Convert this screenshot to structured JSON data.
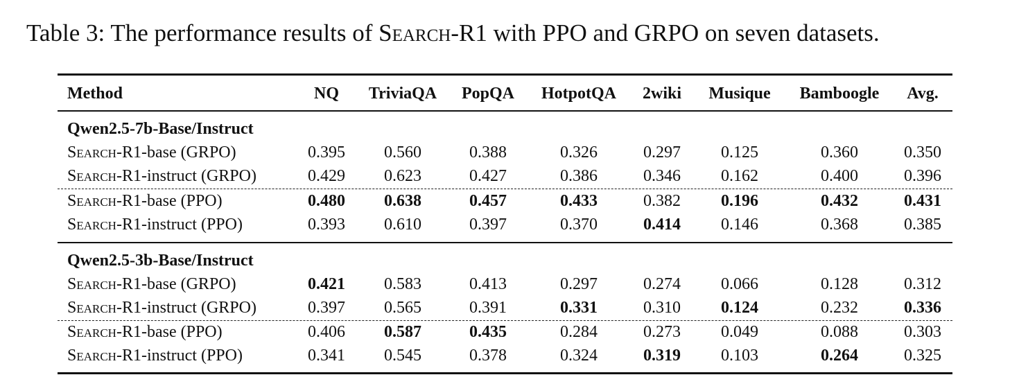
{
  "caption": {
    "prefix": "Table 3: The performance results of ",
    "method_sc": "Search",
    "method_rest": "-R1",
    "suffix": " with PPO and GRPO on seven datasets."
  },
  "table": {
    "headers": [
      "Method",
      "NQ",
      "TriviaQA",
      "PopQA",
      "HotpotQA",
      "2wiki",
      "Musique",
      "Bamboogle",
      "Avg."
    ],
    "groups": [
      {
        "title": "Qwen2.5-7b-Base/Instruct",
        "rows": [
          {
            "sc": "Search",
            "rest": "-R1-base (GRPO)",
            "values": [
              "0.395",
              "0.560",
              "0.388",
              "0.326",
              "0.297",
              "0.125",
              "0.360",
              "0.350"
            ],
            "bold": [
              false,
              false,
              false,
              false,
              false,
              false,
              false,
              false
            ]
          },
          {
            "sc": "Search",
            "rest": "-R1-instruct (GRPO)",
            "values": [
              "0.429",
              "0.623",
              "0.427",
              "0.386",
              "0.346",
              "0.162",
              "0.400",
              "0.396"
            ],
            "bold": [
              false,
              false,
              false,
              false,
              false,
              false,
              false,
              false
            ]
          },
          {
            "sc": "Search",
            "rest": "-R1-base (PPO)",
            "values": [
              "0.480",
              "0.638",
              "0.457",
              "0.433",
              "0.382",
              "0.196",
              "0.432",
              "0.431"
            ],
            "bold": [
              true,
              true,
              true,
              true,
              false,
              true,
              true,
              true
            ]
          },
          {
            "sc": "Search",
            "rest": "-R1-instruct (PPO)",
            "values": [
              "0.393",
              "0.610",
              "0.397",
              "0.370",
              "0.414",
              "0.146",
              "0.368",
              "0.385"
            ],
            "bold": [
              false,
              false,
              false,
              false,
              true,
              false,
              false,
              false
            ]
          }
        ]
      },
      {
        "title": "Qwen2.5-3b-Base/Instruct",
        "rows": [
          {
            "sc": "Search",
            "rest": "-R1-base (GRPO)",
            "values": [
              "0.421",
              "0.583",
              "0.413",
              "0.297",
              "0.274",
              "0.066",
              "0.128",
              "0.312"
            ],
            "bold": [
              true,
              false,
              false,
              false,
              false,
              false,
              false,
              false
            ]
          },
          {
            "sc": "Search",
            "rest": "-R1-instruct (GRPO)",
            "values": [
              "0.397",
              "0.565",
              "0.391",
              "0.331",
              "0.310",
              "0.124",
              "0.232",
              "0.336"
            ],
            "bold": [
              false,
              false,
              false,
              true,
              false,
              true,
              false,
              true
            ]
          },
          {
            "sc": "Search",
            "rest": "-R1-base (PPO)",
            "values": [
              "0.406",
              "0.587",
              "0.435",
              "0.284",
              "0.273",
              "0.049",
              "0.088",
              "0.303"
            ],
            "bold": [
              false,
              true,
              true,
              false,
              false,
              false,
              false,
              false
            ]
          },
          {
            "sc": "Search",
            "rest": "-R1-instruct (PPO)",
            "values": [
              "0.341",
              "0.545",
              "0.378",
              "0.324",
              "0.319",
              "0.103",
              "0.264",
              "0.325"
            ],
            "bold": [
              false,
              false,
              false,
              false,
              true,
              false,
              true,
              false
            ]
          }
        ]
      }
    ]
  }
}
